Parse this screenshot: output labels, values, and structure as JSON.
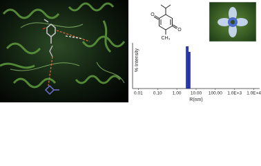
{
  "structure_labels": {
    "oxygen_left": "O",
    "oxygen_right": "O",
    "methyl": "CH₃"
  },
  "chart_data": {
    "type": "histogram",
    "ylabel": "% Intensity",
    "xlabel": "R(nm)",
    "bins": [
      3,
      4,
      5
    ],
    "values": [
      46,
      40
    ],
    "color": "#2b3bb5",
    "xscale": "log",
    "xlim": [
      0.005,
      20000
    ],
    "ylim": [
      0,
      50
    ],
    "xticks": [
      0.01,
      {
        "value": 0.1,
        "label": "0.10"
      },
      {
        "value": 1,
        "label": "1.00"
      },
      {
        "value": 10,
        "label": "10.00"
      },
      {
        "value": 100,
        "label": "100.00"
      },
      {
        "value": 1000,
        "label": "1.0E+3"
      },
      {
        "value": 10000,
        "label": "1.0E+4"
      }
    ]
  }
}
